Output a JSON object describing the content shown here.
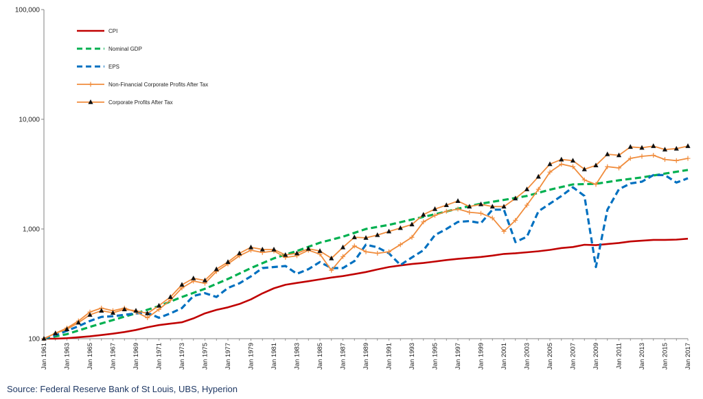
{
  "chart_data": {
    "type": "line",
    "title": "",
    "xlabel": "",
    "ylabel": "",
    "yscale": "log",
    "ylim": [
      100,
      100000
    ],
    "xlim": [
      1961,
      2017
    ],
    "y_ticks": [
      "100",
      "1,000",
      "10,000",
      "100,000"
    ],
    "y_tick_values": [
      100,
      1000,
      10000,
      100000
    ],
    "x_ticks": [
      "Jan 1961",
      "Jan 1963",
      "Jan 1965",
      "Jan 1967",
      "Jan 1969",
      "Jan 1971",
      "Jan 1973",
      "Jan 1975",
      "Jan 1977",
      "Jan 1979",
      "Jan 1981",
      "Jan 1983",
      "Jan 1985",
      "Jan 1987",
      "Jan 1989",
      "Jan 1991",
      "Jan 1993",
      "Jan 1995",
      "Jan 1997",
      "Jan 1999",
      "Jan 2001",
      "Jan 2003",
      "Jan 2005",
      "Jan 2007",
      "Jan 2009",
      "Jan 2011",
      "Jan 2013",
      "Jan 2015",
      "Jan 2017"
    ],
    "x_tick_values": [
      1961,
      1963,
      1965,
      1967,
      1969,
      1971,
      1973,
      1975,
      1977,
      1979,
      1981,
      1983,
      1985,
      1987,
      1989,
      1991,
      1993,
      1995,
      1997,
      1999,
      2001,
      2003,
      2005,
      2007,
      2009,
      2011,
      2013,
      2015,
      2017
    ],
    "legend_position": "top-left",
    "grid": false,
    "series": [
      {
        "name": "CPI",
        "color": "#c00000",
        "style": "solid",
        "marker": "none",
        "x": [
          1961,
          1962,
          1963,
          1964,
          1965,
          1966,
          1967,
          1968,
          1969,
          1970,
          1971,
          1972,
          1973,
          1974,
          1975,
          1976,
          1977,
          1978,
          1979,
          1980,
          1981,
          1982,
          1983,
          1984,
          1985,
          1986,
          1987,
          1988,
          1989,
          1990,
          1991,
          1992,
          1993,
          1994,
          1995,
          1996,
          1997,
          1998,
          1999,
          2000,
          2001,
          2002,
          2003,
          2004,
          2005,
          2006,
          2007,
          2008,
          2009,
          2010,
          2011,
          2012,
          2013,
          2014,
          2015,
          2016,
          2017
        ],
        "values": [
          100,
          100,
          101,
          103,
          105,
          108,
          111,
          115,
          120,
          127,
          133,
          137,
          141,
          153,
          170,
          183,
          193,
          207,
          228,
          259,
          288,
          310,
          322,
          334,
          347,
          361,
          372,
          388,
          405,
          428,
          450,
          465,
          479,
          490,
          505,
          521,
          534,
          545,
          556,
          572,
          592,
          601,
          613,
          626,
          645,
          670,
          685,
          718,
          712,
          730,
          746,
          770,
          782,
          796,
          796,
          800,
          815
        ]
      },
      {
        "name": "Nominal GDP",
        "color": "#00b050",
        "style": "dashed",
        "marker": "none",
        "x": [
          1961,
          1963,
          1965,
          1967,
          1969,
          1971,
          1973,
          1975,
          1977,
          1979,
          1981,
          1983,
          1985,
          1987,
          1989,
          1991,
          1993,
          1995,
          1997,
          1999,
          2001,
          2003,
          2005,
          2007,
          2009,
          2011,
          2013,
          2015,
          2017
        ],
        "values": [
          100,
          110,
          128,
          148,
          170,
          198,
          240,
          285,
          350,
          440,
          540,
          630,
          750,
          850,
          1000,
          1090,
          1220,
          1360,
          1530,
          1700,
          1840,
          2000,
          2280,
          2550,
          2580,
          2780,
          2950,
          3200,
          3450
        ]
      },
      {
        "name": "EPS",
        "color": "#0070c0",
        "style": "dashed",
        "marker": "none",
        "x": [
          1961,
          1962,
          1963,
          1964,
          1965,
          1966,
          1967,
          1968,
          1969,
          1970,
          1971,
          1972,
          1973,
          1974,
          1975,
          1976,
          1977,
          1978,
          1979,
          1980,
          1981,
          1982,
          1983,
          1984,
          1985,
          1986,
          1987,
          1988,
          1989,
          1990,
          1991,
          1992,
          1993,
          1994,
          1995,
          1996,
          1997,
          1998,
          1999,
          2000,
          2001,
          2002,
          2003,
          2004,
          2005,
          2006,
          2007,
          2008,
          2009,
          2010,
          2011,
          2012,
          2013,
          2014,
          2015,
          2016,
          2017
        ],
        "values": [
          100,
          108,
          118,
          130,
          145,
          158,
          160,
          165,
          170,
          172,
          155,
          170,
          190,
          245,
          260,
          240,
          290,
          320,
          370,
          440,
          450,
          460,
          390,
          430,
          500,
          440,
          440,
          510,
          720,
          680,
          600,
          470,
          550,
          640,
          880,
          1000,
          1160,
          1180,
          1130,
          1500,
          1500,
          760,
          850,
          1450,
          1700,
          2000,
          2400,
          2000,
          450,
          1500,
          2300,
          2600,
          2700,
          3100,
          3100,
          2650,
          2900
        ]
      },
      {
        "name": "Non-Financial Corporate Profits After Tax",
        "color": "#f08c3c",
        "style": "solid",
        "marker": "plus",
        "x": [
          1961,
          1962,
          1963,
          1964,
          1965,
          1966,
          1967,
          1968,
          1969,
          1970,
          1971,
          1972,
          1973,
          1974,
          1975,
          1976,
          1977,
          1978,
          1979,
          1980,
          1981,
          1982,
          1983,
          1984,
          1985,
          1986,
          1987,
          1988,
          1989,
          1990,
          1991,
          1992,
          1993,
          1994,
          1995,
          1996,
          1997,
          1998,
          1999,
          2000,
          2001,
          2002,
          2003,
          2004,
          2005,
          2006,
          2007,
          2008,
          2009,
          2010,
          2011,
          2012,
          2013,
          2014,
          2015,
          2016,
          2017
        ],
        "values": [
          100,
          112,
          125,
          145,
          175,
          190,
          180,
          190,
          175,
          155,
          185,
          225,
          290,
          335,
          320,
          410,
          480,
          570,
          640,
          610,
          630,
          550,
          570,
          640,
          590,
          420,
          560,
          700,
          620,
          600,
          620,
          720,
          840,
          1160,
          1330,
          1450,
          1520,
          1420,
          1390,
          1260,
          950,
          1200,
          1650,
          2300,
          3300,
          3900,
          3700,
          2800,
          2550,
          3700,
          3600,
          4400,
          4600,
          4700,
          4300,
          4200,
          4400
        ]
      },
      {
        "name": "Corporate Profits After Tax",
        "color": "#f08c3c",
        "style": "solid",
        "marker": "triangle",
        "x": [
          1961,
          1962,
          1963,
          1964,
          1965,
          1966,
          1967,
          1968,
          1969,
          1970,
          1971,
          1972,
          1973,
          1974,
          1975,
          1976,
          1977,
          1978,
          1979,
          1980,
          1981,
          1982,
          1983,
          1984,
          1985,
          1986,
          1987,
          1988,
          1989,
          1990,
          1991,
          1992,
          1993,
          1994,
          1995,
          1996,
          1997,
          1998,
          1999,
          2000,
          2001,
          2002,
          2003,
          2004,
          2005,
          2006,
          2007,
          2008,
          2009,
          2010,
          2011,
          2012,
          2013,
          2014,
          2015,
          2016,
          2017
        ],
        "values": [
          100,
          112,
          122,
          140,
          165,
          180,
          172,
          185,
          180,
          170,
          200,
          240,
          310,
          355,
          340,
          430,
          500,
          600,
          680,
          650,
          650,
          580,
          600,
          660,
          630,
          540,
          680,
          840,
          830,
          880,
          950,
          1020,
          1100,
          1350,
          1520,
          1650,
          1800,
          1600,
          1680,
          1600,
          1600,
          1900,
          2300,
          3000,
          3900,
          4300,
          4200,
          3500,
          3800,
          4800,
          4700,
          5600,
          5500,
          5700,
          5300,
          5400,
          5700
        ]
      }
    ]
  },
  "source_note": "Source: Federal Reserve Bank of St Louis, UBS, Hyperion"
}
